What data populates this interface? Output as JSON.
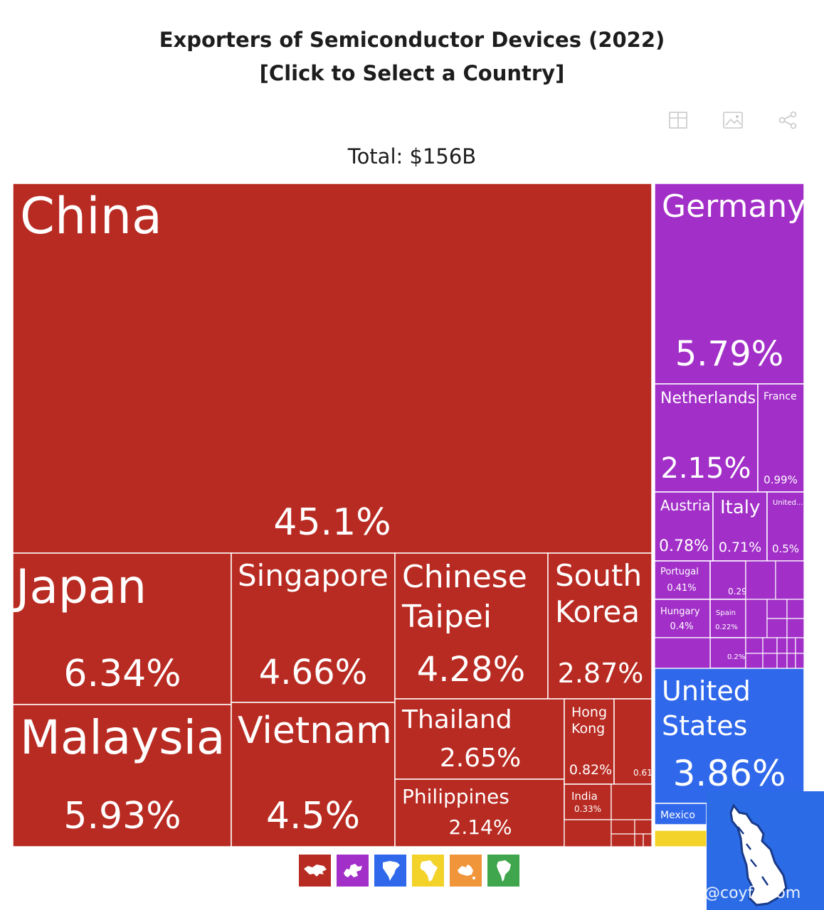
{
  "title_line1": "Exporters of Semiconductor Devices (2022)",
  "title_line2": "[Click to Select a Country]",
  "total_label": "Total: $156B",
  "toolbar": [
    {
      "icon": "table-icon"
    },
    {
      "icon": "image-icon"
    },
    {
      "icon": "share-icon"
    }
  ],
  "colors": {
    "asia": "#b82b22",
    "europe": "#a22fc8",
    "north_america": "#2f68ea",
    "africa": "#f3d22a",
    "oceania": "#f0953a",
    "south_america": "#3fa64d"
  },
  "chart_data": {
    "type": "treemap",
    "title": "Exporters of Semiconductor Devices (2022)",
    "total": "$156B",
    "tiles": [
      {
        "name": "China",
        "share": "45.1%",
        "region": "asia"
      },
      {
        "name": "Japan",
        "share": "6.34%",
        "region": "asia"
      },
      {
        "name": "Malaysia",
        "share": "5.93%",
        "region": "asia"
      },
      {
        "name": "Singapore",
        "share": "4.66%",
        "region": "asia"
      },
      {
        "name": "Vietnam",
        "share": "4.5%",
        "region": "asia"
      },
      {
        "name": "Chinese Taipei",
        "share": "4.28%",
        "region": "asia"
      },
      {
        "name": "South Korea",
        "share": "2.87%",
        "region": "asia"
      },
      {
        "name": "Thailand",
        "share": "2.65%",
        "region": "asia"
      },
      {
        "name": "Philippines",
        "share": "2.14%",
        "region": "asia"
      },
      {
        "name": "Hong Kong",
        "share": "0.82%",
        "region": "asia"
      },
      {
        "name": "",
        "share": "0.61%",
        "region": "asia"
      },
      {
        "name": "India",
        "share": "0.33%",
        "region": "asia"
      },
      {
        "name": "Germany",
        "share": "5.79%",
        "region": "europe"
      },
      {
        "name": "Netherlands",
        "share": "2.15%",
        "region": "europe"
      },
      {
        "name": "France",
        "share": "0.99%",
        "region": "europe"
      },
      {
        "name": "Austria",
        "share": "0.78%",
        "region": "europe"
      },
      {
        "name": "Italy",
        "share": "0.71%",
        "region": "europe"
      },
      {
        "name": "United...",
        "share": "0.5%",
        "region": "europe"
      },
      {
        "name": "Portugal",
        "share": "0.41%",
        "region": "europe"
      },
      {
        "name": "",
        "share": "0.29%",
        "region": "europe"
      },
      {
        "name": "Hungary",
        "share": "0.4%",
        "region": "europe"
      },
      {
        "name": "Spain",
        "share": "0.22%",
        "region": "europe"
      },
      {
        "name": "",
        "share": "0.2%",
        "region": "europe"
      },
      {
        "name": "United States",
        "share": "3.86%",
        "region": "north_america"
      },
      {
        "name": "Mexico",
        "share": "",
        "region": "north_america"
      }
    ]
  },
  "legend": [
    {
      "icon": "asia-map-icon",
      "region": "asia"
    },
    {
      "icon": "europe-map-icon",
      "region": "europe"
    },
    {
      "icon": "north-america-map-icon",
      "region": "north_america"
    },
    {
      "icon": "africa-map-icon",
      "region": "africa"
    },
    {
      "icon": "oceania-map-icon",
      "region": "oceania"
    },
    {
      "icon": "south-america-map-icon",
      "region": "south_america"
    }
  ],
  "watermark": "@coyfx.com"
}
